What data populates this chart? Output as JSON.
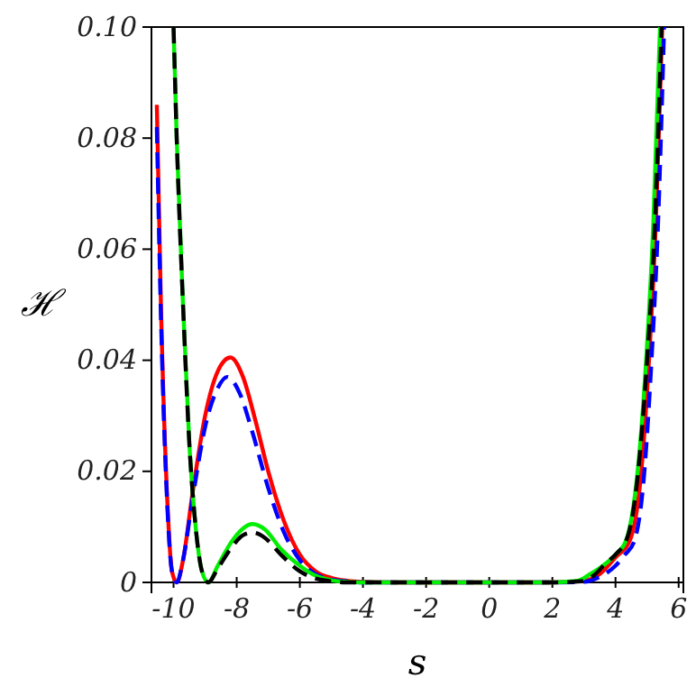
{
  "chart_data": {
    "type": "line",
    "xlabel": "s",
    "ylabel": "ℋ",
    "xlim": [
      -10.7,
      6.15
    ],
    "ylim": [
      0,
      0.1
    ],
    "xticks": [
      -10,
      -8,
      -6,
      -4,
      -2,
      0,
      2,
      4,
      6
    ],
    "yticks": [
      0,
      0.02,
      0.04,
      0.06,
      0.08,
      {
        "value": 0.1,
        "label": "0.10"
      }
    ],
    "series": [
      {
        "color": "#ff0000",
        "line_style": "solid",
        "x": [
          -10.53,
          -10.4,
          -10.2,
          -10.05,
          -9.9,
          -9.7,
          -9.4,
          -9.0,
          -8.6,
          -8.2,
          -7.8,
          -7.4,
          -7,
          -6.5,
          -6,
          -5.5,
          -5,
          -4.5,
          -4,
          -3,
          2,
          3,
          3.5,
          4,
          4.45,
          4.8,
          5.06,
          5.28,
          5.48
        ],
        "values": [
          0.086,
          0.05,
          0.015,
          0.002,
          0,
          0.004,
          0.016,
          0.03,
          0.038,
          0.0405,
          0.037,
          0.029,
          0.02,
          0.011,
          0.005,
          0.002,
          0.0008,
          0.0003,
          0.0001,
          0,
          0,
          0.0003,
          0.0015,
          0.0045,
          0.0075,
          0.019,
          0.04,
          0.065,
          0.1
        ]
      },
      {
        "color": "#0000ff",
        "line_style": "dashed",
        "x": [
          -10.53,
          -10.4,
          -10.2,
          -10.05,
          -9.9,
          -9.7,
          -9.4,
          -9.0,
          -8.6,
          -8.3,
          -7.9,
          -7.5,
          -7,
          -6.5,
          -6,
          -5.5,
          -5,
          -4.5,
          -4,
          2,
          3,
          3.5,
          4,
          4.3,
          4.6,
          4.9,
          5.14,
          5.35,
          5.54
        ],
        "values": [
          0.082,
          0.048,
          0.014,
          0.002,
          0,
          0.004,
          0.015,
          0.028,
          0.035,
          0.037,
          0.034,
          0.027,
          0.017,
          0.009,
          0.004,
          0.0015,
          0.0005,
          0.0002,
          0,
          0,
          0.0001,
          0.001,
          0.003,
          0.005,
          0.0075,
          0.019,
          0.04,
          0.065,
          0.1
        ]
      },
      {
        "color": "#00ee00",
        "line_style": "solid",
        "x": [
          -10.0,
          -9.9,
          -9.7,
          -9.5,
          -9.3,
          -9.1,
          -8.9,
          -8.6,
          -8.2,
          -7.8,
          -7.5,
          -7.1,
          -6.6,
          -6,
          -5.5,
          -5,
          -4.5,
          -4,
          2,
          2.8,
          3.2,
          3.6,
          4.0,
          4.33,
          4.7,
          4.97,
          5.2,
          5.41
        ],
        "values": [
          0.1,
          0.08,
          0.05,
          0.025,
          0.01,
          0.002,
          0,
          0.003,
          0.007,
          0.0097,
          0.0105,
          0.0095,
          0.006,
          0.003,
          0.0012,
          0.0004,
          0.0001,
          0,
          0,
          0.0003,
          0.0015,
          0.003,
          0.005,
          0.0075,
          0.02,
          0.04,
          0.065,
          0.1
        ]
      },
      {
        "color": "#000000",
        "line_style": "dashed",
        "x": [
          -10.0,
          -9.9,
          -9.7,
          -9.5,
          -9.3,
          -9.1,
          -8.9,
          -8.6,
          -8.2,
          -7.8,
          -7.5,
          -7.1,
          -6.6,
          -6,
          -5.5,
          -5,
          -4.5,
          2,
          2.9,
          3.3,
          3.7,
          4.0,
          4.4,
          4.7,
          5.0,
          5.25,
          5.46
        ],
        "values": [
          0.1,
          0.08,
          0.05,
          0.025,
          0.01,
          0.002,
          0,
          0.0025,
          0.006,
          0.0085,
          0.009,
          0.008,
          0.005,
          0.002,
          0.0007,
          0.0002,
          0,
          0,
          0.0002,
          0.0012,
          0.0035,
          0.005,
          0.0085,
          0.019,
          0.04,
          0.065,
          0.1
        ]
      }
    ]
  }
}
